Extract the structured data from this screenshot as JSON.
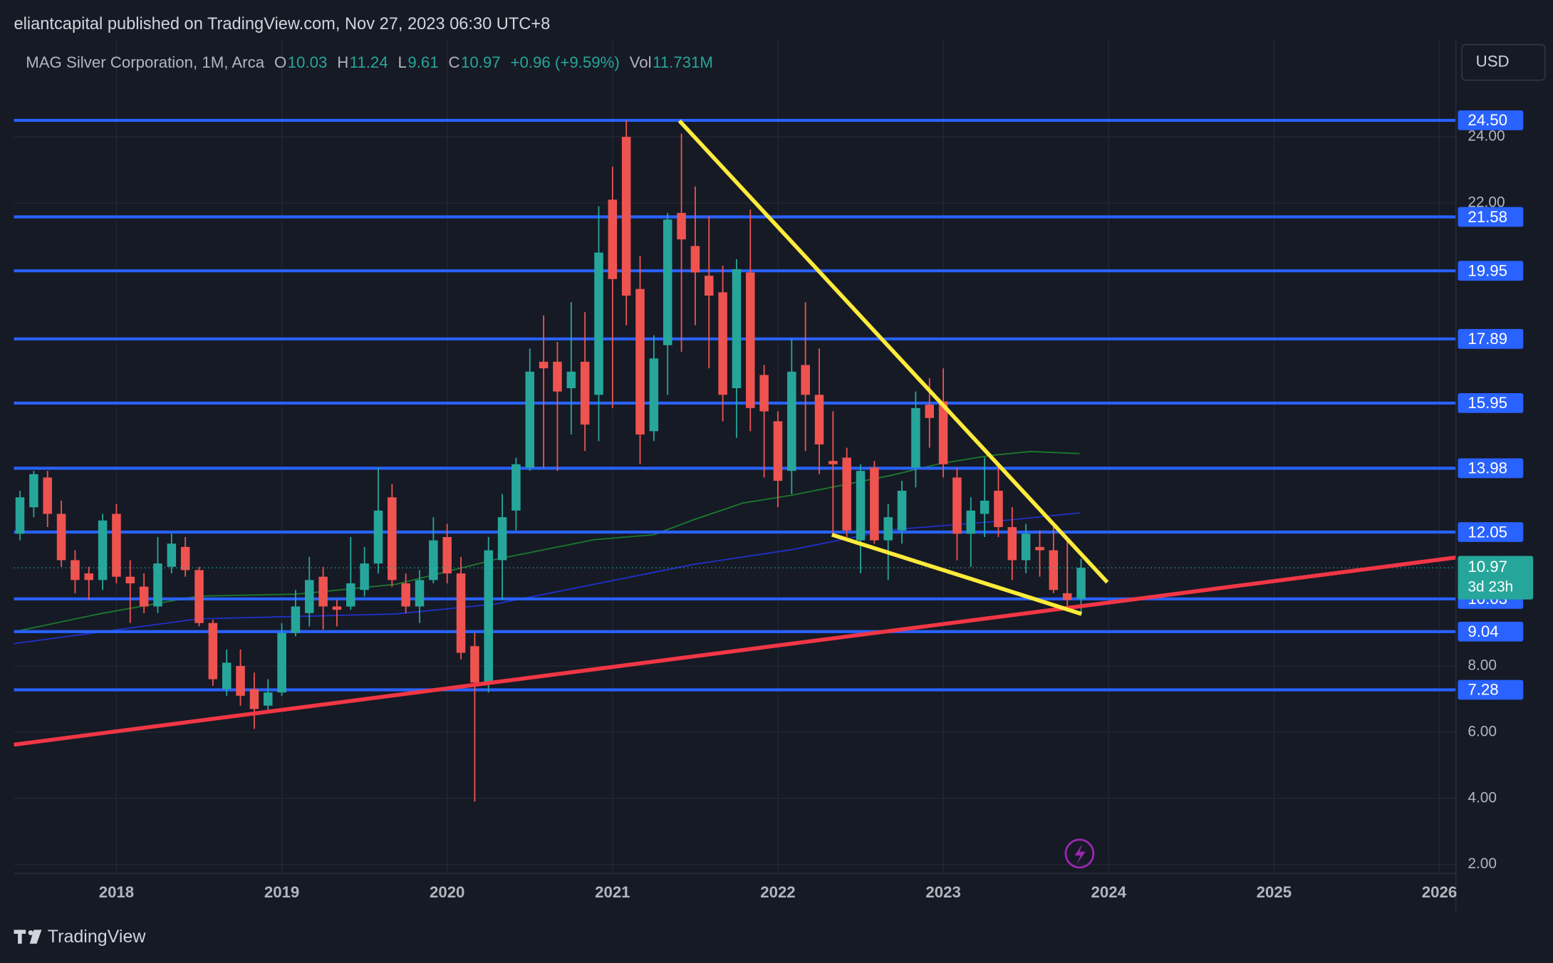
{
  "header": {
    "publisher": "eliantcapital published on TradingView.com, Nov 27, 2023 06:30 UTC+8"
  },
  "footer": {
    "brand": "TradingView"
  },
  "currency_button": "USD",
  "chart_data": {
    "type": "candlestick",
    "title": "MAG Silver Corporation, 1M, Arca",
    "ohlc_legend": [
      {
        "label": "O",
        "value": 10.03
      },
      {
        "label": "H",
        "value": 11.24
      },
      {
        "label": "L",
        "value": 9.61
      },
      {
        "label": "C",
        "value": 10.97
      }
    ],
    "change": "+0.96 (+9.59%)",
    "volume": {
      "label": "Vol",
      "value": "11.731M"
    },
    "countdown": "3d 23h",
    "up_color": "#26a69a",
    "down_color": "#ef5350",
    "level_color": "#2962ff",
    "x": [
      "2017-06",
      "2017-07",
      "2017-08",
      "2017-09",
      "2017-10",
      "2017-11",
      "2017-12",
      "2018-01",
      "2018-02",
      "2018-03",
      "2018-04",
      "2018-05",
      "2018-06",
      "2018-07",
      "2018-08",
      "2018-09",
      "2018-10",
      "2018-11",
      "2018-12",
      "2019-01",
      "2019-02",
      "2019-03",
      "2019-04",
      "2019-05",
      "2019-06",
      "2019-07",
      "2019-08",
      "2019-09",
      "2019-10",
      "2019-11",
      "2019-12",
      "2020-01",
      "2020-02",
      "2020-03",
      "2020-04",
      "2020-05",
      "2020-06",
      "2020-07",
      "2020-08",
      "2020-09",
      "2020-10",
      "2020-11",
      "2020-12",
      "2021-01",
      "2021-02",
      "2021-03",
      "2021-04",
      "2021-05",
      "2021-06",
      "2021-07",
      "2021-08",
      "2021-09",
      "2021-10",
      "2021-11",
      "2021-12",
      "2022-01",
      "2022-02",
      "2022-03",
      "2022-04",
      "2022-05",
      "2022-06",
      "2022-07",
      "2022-08",
      "2022-09",
      "2022-10",
      "2022-11",
      "2022-12",
      "2023-01",
      "2023-02",
      "2023-03",
      "2023-04",
      "2023-05",
      "2023-06",
      "2023-07",
      "2023-08",
      "2023-09",
      "2023-10",
      "2023-11"
    ],
    "open": [
      12.0,
      12.8,
      13.7,
      12.6,
      11.2,
      10.8,
      10.6,
      12.6,
      10.7,
      10.4,
      9.8,
      11.0,
      11.6,
      10.9,
      9.3,
      7.3,
      8.0,
      7.3,
      6.8,
      7.2,
      9.0,
      9.6,
      10.7,
      9.8,
      9.8,
      10.3,
      11.1,
      13.1,
      10.5,
      9.8,
      10.6,
      11.9,
      10.8,
      8.6,
      7.5,
      11.2,
      12.7,
      14.0,
      17.2,
      17.2,
      16.4,
      17.2,
      16.2,
      22.1,
      24.0,
      19.4,
      15.1,
      17.7,
      21.7,
      20.7,
      19.8,
      19.3,
      16.4,
      19.9,
      16.8,
      15.4,
      13.9,
      17.1,
      16.2,
      14.2,
      14.3,
      11.8,
      14.0,
      11.8,
      12.1,
      14.0,
      15.9,
      16.0,
      13.7,
      12.0,
      12.6,
      13.3,
      12.2,
      11.2,
      11.6,
      11.5,
      10.2,
      10.03
    ],
    "high": [
      13.3,
      13.9,
      13.9,
      13.0,
      11.5,
      11.0,
      12.6,
      12.9,
      11.2,
      10.8,
      11.9,
      12.0,
      11.9,
      11.0,
      9.4,
      8.5,
      8.5,
      7.8,
      7.6,
      9.3,
      10.3,
      11.3,
      11.0,
      10.0,
      11.9,
      11.6,
      14.0,
      13.5,
      10.8,
      10.9,
      12.5,
      12.3,
      11.3,
      9.0,
      11.9,
      13.2,
      14.3,
      17.6,
      18.6,
      17.8,
      19.0,
      18.7,
      21.9,
      23.1,
      24.5,
      20.4,
      18.0,
      21.7,
      24.1,
      22.5,
      21.6,
      20.1,
      20.3,
      21.8,
      17.1,
      15.7,
      17.9,
      19.0,
      17.6,
      15.7,
      14.6,
      14.1,
      14.2,
      12.9,
      13.6,
      16.3,
      16.7,
      17.0,
      14.0,
      13.1,
      14.3,
      14.0,
      12.8,
      12.3,
      12.1,
      12.2,
      11.9,
      11.24
    ],
    "low": [
      11.8,
      12.5,
      12.2,
      11.0,
      10.2,
      10.0,
      10.3,
      10.5,
      9.3,
      9.6,
      9.6,
      10.8,
      10.7,
      9.2,
      7.4,
      7.1,
      6.8,
      6.1,
      6.6,
      7.1,
      8.9,
      9.2,
      9.1,
      9.2,
      9.7,
      10.1,
      10.8,
      10.4,
      9.6,
      9.3,
      10.5,
      10.5,
      8.2,
      3.9,
      7.2,
      10.0,
      12.1,
      13.9,
      14.0,
      13.9,
      15.0,
      14.5,
      14.8,
      15.8,
      18.3,
      14.1,
      14.8,
      16.2,
      17.5,
      18.3,
      17.0,
      15.4,
      14.9,
      15.1,
      13.7,
      12.8,
      13.2,
      14.5,
      13.8,
      12.0,
      11.9,
      10.8,
      11.7,
      10.6,
      11.7,
      13.4,
      14.6,
      13.7,
      11.2,
      11.0,
      11.9,
      11.9,
      10.6,
      10.8,
      10.7,
      10.2,
      9.8,
      9.61
    ],
    "close": [
      13.1,
      13.8,
      12.6,
      11.2,
      10.6,
      10.6,
      12.4,
      10.7,
      10.5,
      9.8,
      11.1,
      11.7,
      10.9,
      9.3,
      7.6,
      8.1,
      7.1,
      6.7,
      7.2,
      9.0,
      9.8,
      10.6,
      9.8,
      9.7,
      10.5,
      11.1,
      12.7,
      10.6,
      9.8,
      10.6,
      11.8,
      10.8,
      8.4,
      7.5,
      11.5,
      12.5,
      14.1,
      16.9,
      17.0,
      16.3,
      16.9,
      15.3,
      20.5,
      19.7,
      19.2,
      15.0,
      17.3,
      21.5,
      20.9,
      19.9,
      19.2,
      16.2,
      20.0,
      15.8,
      15.7,
      13.6,
      16.9,
      16.2,
      14.7,
      14.1,
      12.1,
      13.9,
      11.8,
      12.5,
      13.3,
      15.8,
      15.5,
      14.1,
      12.0,
      12.7,
      13.0,
      12.2,
      11.2,
      12.0,
      11.5,
      10.3,
      10.0,
      10.97
    ],
    "levels": [
      {
        "value": 24.5,
        "label": "24.50"
      },
      21.58,
      19.95,
      17.89,
      15.95,
      13.98,
      12.05,
      10.03,
      9.04,
      7.28
    ],
    "xlim": [
      2017.38,
      2026.1
    ],
    "ylim": [
      1.73,
      26.94
    ],
    "xticks": [
      2018,
      2019,
      2020,
      2021,
      2022,
      2023,
      2024,
      2025,
      2026
    ],
    "yticks": [
      {
        "value": 2,
        "label": "2.00"
      },
      {
        "value": 4,
        "label": "4.00"
      },
      {
        "value": 6,
        "label": "6.00"
      },
      {
        "value": 8,
        "label": "8.00"
      },
      {
        "value": 22,
        "label": "22.00"
      },
      {
        "value": 24,
        "label": "24.00"
      }
    ],
    "grid": true
  }
}
